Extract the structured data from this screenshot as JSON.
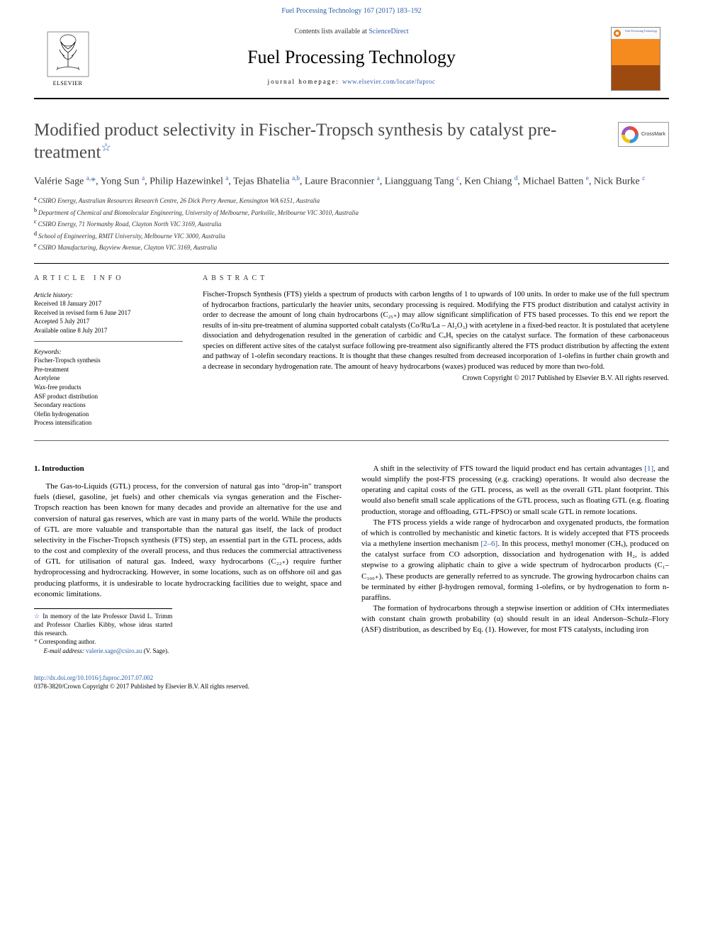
{
  "topLink": "Fuel Processing Technology 167 (2017) 183–192",
  "header": {
    "contentsLine": "Contents lists available at ",
    "contentsLink": "ScienceDirect",
    "journalTitle": "Fuel Processing Technology",
    "homepageLabel": "journal homepage: ",
    "homepageUrl": "www.elsevier.com/locate/fuproc",
    "elsevierLabel": "ELSEVIER",
    "coverThumbLabel": "Fuel\nProcessing\nTechnology"
  },
  "crossmark": "CrossMark",
  "title": "Modified product selectivity in Fischer-Tropsch synthesis by catalyst pre-treatment",
  "titleStar": "☆",
  "authorsHtml": "Valérie Sage <span class='aff-sup'>a,</span><a href='#'>*</a>, Yong Sun <span class='aff-sup'>a</span>, Philip Hazewinkel <span class='aff-sup'>a</span>, Tejas Bhatelia <span class='aff-sup'>a,b</span>, Laure Braconnier <span class='aff-sup'>a</span>, Liangguang Tang <span class='aff-sup'>c</span>, Ken Chiang <span class='aff-sup'>d</span>, Michael Batten <span class='aff-sup'>e</span>, Nick Burke <span class='aff-sup'>c</span>",
  "affiliations": [
    {
      "key": "a",
      "text": "CSIRO Energy, Australian Resources Research Centre, 26 Dick Perry Avenue, Kensington WA 6151, Australia"
    },
    {
      "key": "b",
      "text": "Department of Chemical and Biomolecular Engineering, University of Melbourne, Parkville, Melbourne VIC 3010, Australia"
    },
    {
      "key": "c",
      "text": "CSIRO Energy, 71 Normanby Road, Clayton North VIC 3169, Australia"
    },
    {
      "key": "d",
      "text": "School of Engineering, RMIT University, Melbourne VIC 3000, Australia"
    },
    {
      "key": "e",
      "text": "CSIRO Manufacturing, Bayview Avenue, Clayton VIC 3169, Australia"
    }
  ],
  "articleInfo": {
    "heading": "ARTICLE INFO",
    "historyHead": "Article history:",
    "history": [
      "Received 18 January 2017",
      "Received in revised form 6 June 2017",
      "Accepted 5 July 2017",
      "Available online 8 July 2017"
    ],
    "keywordsHead": "Keywords:",
    "keywords": [
      "Fischer-Tropsch synthesis",
      "Pre-treatment",
      "Acetylene",
      "Wax-free products",
      "ASF product distribution",
      "Secondary reactions",
      "Olefin hydrogenation",
      "Process intensification"
    ]
  },
  "abstract": {
    "heading": "ABSTRACT",
    "body": "Fischer-Tropsch Synthesis (FTS) yields a spectrum of products with carbon lengths of 1 to upwards of 100 units. In order to make use of the full spectrum of hydrocarbon fractions, particularly the heavier units, secondary processing is required. Modifying the FTS product distribution and catalyst activity in order to decrease the amount of long chain hydrocarbons (C₂₅₊) may allow significant simplification of FTS based processes. To this end we report the results of in-situ pre-treatment of alumina supported cobalt catalysts (Co/Ru/La – Al₂O₃) with acetylene in a fixed-bed reactor. It is postulated that acetylene dissociation and dehydrogenation resulted in the generation of carbidic and CₓHᵧ species on the catalyst surface. The formation of these carbonaceous species on different active sites of the catalyst surface following pre-treatment also significantly altered the FTS product distribution by affecting the extent and pathway of 1-olefin secondary reactions. It is thought that these changes resulted from decreased incorporation of 1-olefins in further chain growth and a decrease in secondary hydrogenation rate. The amount of heavy hydrocarbons (waxes) produced was reduced by more than two-fold.",
    "copyright": "Crown Copyright © 2017 Published by Elsevier B.V. All rights reserved."
  },
  "intro": {
    "heading": "1. Introduction",
    "p1": "The Gas-to-Liquids (GTL) process, for the conversion of natural gas into \"drop-in\" transport fuels (diesel, gasoline, jet fuels) and other chemicals via syngas generation and the Fischer-Tropsch reaction has been known for many decades and provide an alternative for the use and conversion of natural gas reserves, which are vast in many parts of the world. While the products of GTL are more valuable and transportable than the natural gas itself, the lack of product selectivity in the Fischer-Tropsch synthesis (FTS) step, an essential part in the GTL process, adds to the cost and complexity of the overall process, and thus reduces the commercial attractiveness of GTL for utilisation of natural gas. Indeed, waxy hydrocarbons (C₂₂₊) require further hydroprocessing and hydrocracking. However, in some locations, such as on offshore oil and gas producing platforms, it is undesirable to locate hydrocracking facilities due to weight, space and economic limitations.",
    "p2a": "A shift in the selectivity of FTS toward the liquid product end has certain advantages ",
    "p2ref": "[1]",
    "p2b": ", and would simplify the post-FTS processing (e.g. cracking) operations. It would also decrease the operating and capital costs of the GTL process, as well as the overall GTL plant footprint. This would also benefit small scale applications of the GTL process, such as floating GTL (e.g. floating production, storage and offloading, GTL-FPSO) or small scale GTL in remote locations.",
    "p3a": "The FTS process yields a wide range of hydrocarbon and oxygenated products, the formation of which is controlled by mechanistic and kinetic factors. It is widely accepted that FTS proceeds via a methylene insertion mechanism ",
    "p3ref": "[2–6]",
    "p3b": ". In this process, methyl monomer (CHₓ), produced on the catalyst surface from CO adsorption, dissociation and hydrogenation with H₂, is added stepwise to a growing aliphatic chain to give a wide spectrum of hydrocarbon products (C₁–C₁₀₀₊). These products are generally referred to as syncrude. The growing hydrocarbon chains can be terminated by either β-hydrogen removal, forming 1-olefins, or by hydrogenation to form n-paraffins.",
    "p4": "The formation of hydrocarbons through a stepwise insertion or addition of CHx intermediates with constant chain growth probability (α) should result in an ideal Anderson–Schulz–Flory (ASF) distribution, as described by Eq. (1). However, for most FTS catalysts, including iron"
  },
  "footnotes": {
    "starText": "In memory of the late Professor David L. Trimm and Professor Charlies Kibby, whose ideas started this research.",
    "corrLabel": "Corresponding author.",
    "emailLabel": "E-mail address:",
    "email": "valerie.sage@csiro.au",
    "emailSuffix": "(V. Sage)."
  },
  "footer": {
    "doi": "http://dx.doi.org/10.1016/j.fuproc.2017.07.002",
    "issn": "0378-3820/Crown Copyright © 2017 Published by Elsevier B.V. All rights reserved."
  },
  "colors": {
    "link": "#2d5caa",
    "bodyText": "#000000",
    "titleText": "#4a4a4a",
    "background": "#ffffff",
    "coverOrange": "#f58a1f",
    "coverDark": "#9c4a0f"
  },
  "typography": {
    "journalTitleSize": 26,
    "articleTitleSize": 25,
    "bodySize": 11,
    "abstractSize": 10.5,
    "smallSize": 9,
    "family": "Times New Roman, serif"
  },
  "layout": {
    "pageWidth": 992,
    "pageHeight": 1323,
    "marginX": 48,
    "columnCount": 2,
    "columnGap": 28
  }
}
